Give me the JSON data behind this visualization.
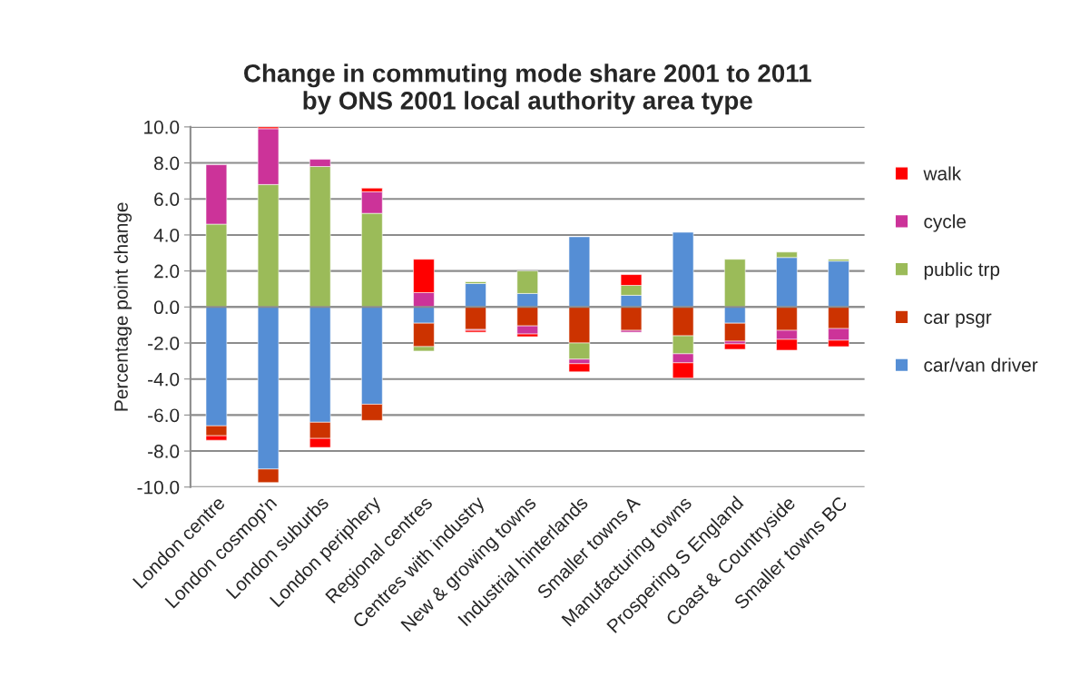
{
  "chart_data": {
    "type": "bar",
    "stacked": true,
    "title": "Change in commuting mode share 2001 to 2011\nby ONS 2001 local authority area type",
    "ylabel": "Percentage point change",
    "categories": [
      "London centre",
      "London cosmop'n",
      "London suburbs",
      "London periphery",
      "Regional centres",
      "Centres with industry",
      "New & growing towns",
      "Industrial hinterlands",
      "Smaller towns A",
      "Manufacturing towns",
      "Prospering S England",
      "Coast & Countryside",
      "Smaller towns BC"
    ],
    "series": [
      {
        "name": "car/van driver",
        "color": "#558ed5",
        "values": [
          -6.6,
          -9.0,
          -6.4,
          -5.4,
          -0.9,
          1.3,
          0.75,
          3.9,
          0.65,
          4.15,
          -0.9,
          2.75,
          2.55
        ]
      },
      {
        "name": "car psgr",
        "color": "#cc3300",
        "values": [
          -0.55,
          -0.75,
          -0.9,
          -0.9,
          -1.3,
          -1.25,
          -1.05,
          -2.0,
          -1.3,
          -1.6,
          -1.0,
          -1.3,
          -1.2
        ]
      },
      {
        "name": "public trp",
        "color": "#9bbb59",
        "values": [
          4.6,
          6.8,
          7.8,
          5.2,
          -0.25,
          0.1,
          1.25,
          -0.9,
          0.55,
          -1.0,
          2.65,
          0.3,
          0.1
        ]
      },
      {
        "name": "cycle",
        "color": "#cc3399",
        "values": [
          3.3,
          3.1,
          0.4,
          1.2,
          0.8,
          -0.05,
          -0.45,
          -0.25,
          -0.1,
          -0.5,
          -0.15,
          -0.5,
          -0.65
        ]
      },
      {
        "name": "walk",
        "color": "#ff0000",
        "values": [
          -0.25,
          0.1,
          -0.5,
          0.2,
          1.85,
          -0.1,
          -0.15,
          -0.45,
          0.6,
          -0.85,
          -0.3,
          -0.6,
          -0.35
        ]
      }
    ],
    "ylim": [
      -10,
      10
    ],
    "yticks": [
      {
        "value": -10,
        "label": "-10.0"
      },
      {
        "value": -8,
        "label": "-8.0"
      },
      {
        "value": -6,
        "label": "-6.0"
      },
      {
        "value": -4,
        "label": "-4.0"
      },
      {
        "value": -2,
        "label": "-2.0"
      },
      {
        "value": 0,
        "label": "0.0"
      },
      {
        "value": 2,
        "label": "2.0"
      },
      {
        "value": 4,
        "label": "4.0"
      },
      {
        "value": 6,
        "label": "6.0"
      },
      {
        "value": 8,
        "label": "8.0"
      },
      {
        "value": 10,
        "label": "10.0"
      }
    ],
    "grid": "y",
    "legend": "right"
  }
}
